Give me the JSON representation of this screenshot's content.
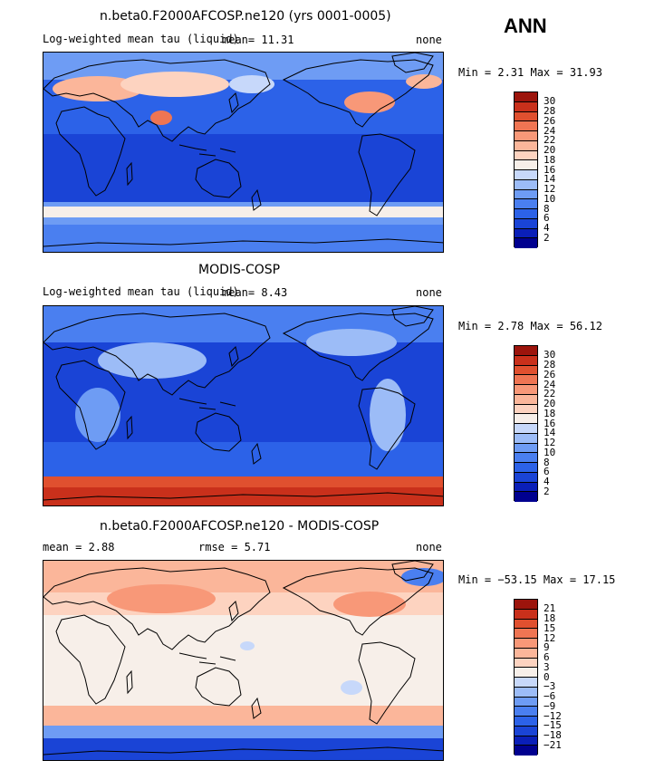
{
  "season": "ANN",
  "colors": {
    "abs": [
      "#00008f",
      "#0a1fb8",
      "#1a44d6",
      "#2c62e8",
      "#4a7ff0",
      "#6e9cf4",
      "#9cbcf7",
      "#c7d8fa",
      "#f7efe9",
      "#fdd3c0",
      "#fbb69a",
      "#f89878",
      "#ef7553",
      "#e0502f",
      "#c9301b",
      "#9c140c"
    ],
    "diff": [
      "#00008f",
      "#0a1fb8",
      "#1a44d6",
      "#2c62e8",
      "#4a7ff0",
      "#6e9cf4",
      "#9cbcf7",
      "#c7d8fa",
      "#f7efe9",
      "#fdd3c0",
      "#fbb69a",
      "#f89878",
      "#ef7553",
      "#e0502f",
      "#c9301b",
      "#9c140c"
    ]
  },
  "panels": [
    {
      "title": "n.beta0.F2000AFCOSP.ne120 (yrs 0001-0005)",
      "left_label": "Log-weighted mean tau (liquid)",
      "mean_text": "mean=    11.31",
      "right_label": "none",
      "minmax": "Min =    2.31 Max =   31.93",
      "ticks": [
        "30",
        "28",
        "26",
        "24",
        "22",
        "20",
        "18",
        "16",
        "14",
        "12",
        "10",
        "8",
        "6",
        "4",
        "2"
      ],
      "chart_data": {
        "type": "heatmap",
        "field": "model",
        "min": 2.31,
        "max": 31.93,
        "mean": 11.31,
        "levels": [
          2,
          4,
          6,
          8,
          10,
          12,
          14,
          16,
          18,
          20,
          22,
          24,
          26,
          28,
          30
        ]
      }
    },
    {
      "title": "MODIS-COSP",
      "left_label": "Log-weighted mean tau (liquid)",
      "mean_text": "mean=     8.43",
      "right_label": "none",
      "minmax": "Min =    2.78 Max =   56.12",
      "ticks": [
        "30",
        "28",
        "26",
        "24",
        "22",
        "20",
        "18",
        "16",
        "14",
        "12",
        "10",
        "8",
        "6",
        "4",
        "2"
      ],
      "chart_data": {
        "type": "heatmap",
        "field": "observation",
        "min": 2.78,
        "max": 56.12,
        "mean": 8.43,
        "levels": [
          2,
          4,
          6,
          8,
          10,
          12,
          14,
          16,
          18,
          20,
          22,
          24,
          26,
          28,
          30
        ]
      }
    },
    {
      "title": "n.beta0.F2000AFCOSP.ne120 - MODIS-COSP",
      "left_label": "mean =    2.88",
      "mean_text": "rmse =    5.71",
      "right_label": "none",
      "minmax": "Min = −53.15 Max =   17.15",
      "ticks": [
        "21",
        "18",
        "15",
        "12",
        "9",
        "6",
        "3",
        "0",
        "−3",
        "−6",
        "−9",
        "−12",
        "−15",
        "−18",
        "−21"
      ],
      "chart_data": {
        "type": "heatmap",
        "field": "difference",
        "min": -53.15,
        "max": 17.15,
        "mean": 2.88,
        "rmse": 5.71,
        "levels": [
          -21,
          -18,
          -15,
          -12,
          -9,
          -6,
          -3,
          0,
          3,
          6,
          9,
          12,
          15,
          18,
          21
        ]
      }
    }
  ]
}
